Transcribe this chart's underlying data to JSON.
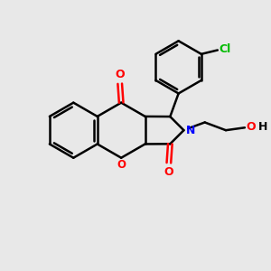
{
  "background_color": "#e8e8e8",
  "bond_color": "#000000",
  "oxygen_color": "#ff0000",
  "nitrogen_color": "#0000ff",
  "chlorine_color": "#00bb00",
  "bond_width": 1.8,
  "figsize": [
    3.0,
    3.0
  ],
  "dpi": 100,
  "xlim": [
    0,
    10
  ],
  "ylim": [
    0,
    10
  ]
}
